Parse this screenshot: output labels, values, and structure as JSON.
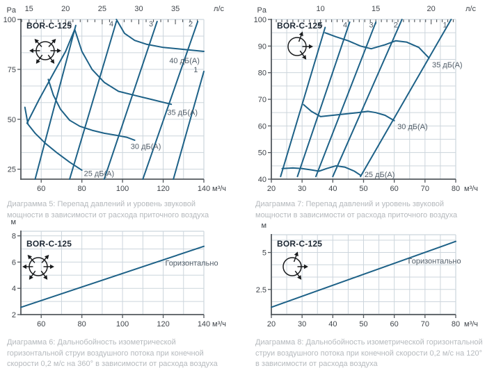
{
  "colors": {
    "curve": "#1d6187",
    "grid": "#ccd5dc",
    "axis": "#53585d",
    "tick_text": "#3f444a",
    "series_label": "#515d68",
    "caption": "#b5b9bd",
    "model": "#1c2733",
    "icon": "#1a1c1e",
    "background": "#ffffff"
  },
  "chart_data": [
    {
      "id": "diagram5",
      "type": "line",
      "title": "BOR-C-125",
      "icon": "diffuser-360-icon",
      "caption": "Диаграмма 5: Перепад давлений и уровень звуковой\nмощности в зависимости от расхода приточного воздуха",
      "x_unit": "м³/ч",
      "y_unit": "Pa",
      "top_unit": "л/с",
      "xlim": [
        50,
        140
      ],
      "ylim": [
        20,
        100
      ],
      "x_ticks": [
        60,
        80,
        100,
        120,
        140
      ],
      "y_ticks": [
        25,
        50,
        75,
        100
      ],
      "top_ticks": [
        15,
        20,
        25,
        30,
        35
      ],
      "top_minor_step": 1,
      "lps_to_m3h": 3.6,
      "grid_step_x": 10,
      "grid_step_y": 8.3333,
      "series": [
        {
          "name": "fan-position-5",
          "label": "5",
          "label_pos": [
            74,
            98
          ],
          "label_anchor": "middle",
          "points": [
            [
              57,
              20
            ],
            [
              77,
              97
            ]
          ]
        },
        {
          "name": "fan-position-4",
          "label": "4",
          "label_pos": [
            94.5,
            98
          ],
          "label_anchor": "middle",
          "points": [
            [
              74,
              20
            ],
            [
              97,
              99
            ]
          ]
        },
        {
          "name": "fan-position-3",
          "label": "3",
          "label_pos": [
            114,
            98
          ],
          "label_anchor": "middle",
          "points": [
            [
              91,
              20
            ],
            [
              117,
              99
            ]
          ]
        },
        {
          "name": "fan-position-2",
          "label": "2",
          "label_pos": [
            133.5,
            98
          ],
          "label_anchor": "middle",
          "points": [
            [
              110,
              20
            ],
            [
              137,
              99
            ]
          ]
        },
        {
          "name": "fan-position-1",
          "label": "1",
          "label_pos": [
            136,
            75
          ],
          "label_anchor": "middle",
          "points": [
            [
              125,
              20
            ],
            [
              140,
              74
            ]
          ]
        },
        {
          "name": "noise-40-dBA",
          "label": "40 дБ(А)",
          "label_pos": [
            123,
            79.5
          ],
          "label_anchor": "start",
          "points": [
            [
              97,
              100
            ],
            [
              101,
              93
            ],
            [
              106,
              89.5
            ],
            [
              112,
              87.5
            ],
            [
              120,
              86
            ],
            [
              130,
              85
            ],
            [
              140,
              84
            ]
          ]
        },
        {
          "name": "noise-35-dBA",
          "label": "35 дБ(А)",
          "label_pos": [
            122,
            53.5
          ],
          "label_anchor": "start",
          "points": [
            [
              53,
              48
            ],
            [
              59,
              60
            ],
            [
              66,
              73
            ],
            [
              72,
              84
            ],
            [
              76.5,
              95
            ],
            [
              80,
              84
            ],
            [
              85,
              75
            ],
            [
              91,
              68.5
            ],
            [
              98,
              64
            ],
            [
              106,
              62
            ],
            [
              114,
              60
            ],
            [
              124,
              57.5
            ]
          ]
        },
        {
          "name": "noise-30-dBA",
          "label": "30 дБ(А)",
          "label_pos": [
            104,
            36.5
          ],
          "label_anchor": "start",
          "points": [
            [
              63.5,
              70
            ],
            [
              66,
              62
            ],
            [
              69.5,
              55
            ],
            [
              74,
              49.5
            ],
            [
              79,
              46.5
            ],
            [
              85,
              44.5
            ],
            [
              91,
              43
            ],
            [
              97,
              42
            ],
            [
              102,
              41
            ],
            [
              106,
              39.5
            ]
          ]
        },
        {
          "name": "noise-25-dBA",
          "label": "25 дБ(А)",
          "label_pos": [
            81,
            23
          ],
          "label_anchor": "start",
          "points": [
            [
              52,
              56
            ],
            [
              53.5,
              47.5
            ],
            [
              57,
              43
            ],
            [
              62,
              38
            ],
            [
              68,
              33
            ],
            [
              74,
              28.5
            ],
            [
              80,
              24.5
            ]
          ]
        }
      ]
    },
    {
      "id": "diagram7",
      "type": "line",
      "title": "BOR-C-125",
      "icon": "diffuser-120-icon",
      "caption": "Диаграмма 7: Перепад давлений и уровень звуковой\nмощности в зависимости от расхода приточного воздуха",
      "x_unit": "м³/ч",
      "y_unit": "Pa",
      "top_unit": "л/с",
      "xlim": [
        20,
        80
      ],
      "ylim": [
        40,
        100
      ],
      "x_ticks": [
        20,
        30,
        40,
        50,
        60,
        70,
        80
      ],
      "y_ticks": [
        40,
        50,
        60,
        70,
        80,
        90,
        100
      ],
      "top_ticks": [
        10,
        15,
        20
      ],
      "top_minor_step": 0.5,
      "lps_to_m3h": 3.6,
      "grid_step_x": 5,
      "grid_step_y": 5,
      "series": [
        {
          "name": "fan-position-5",
          "label": "5",
          "label_pos": [
            36,
            98
          ],
          "label_anchor": "middle",
          "points": [
            [
              23,
              41
            ],
            [
              37.5,
              97
            ]
          ]
        },
        {
          "name": "fan-position-4",
          "label": "4",
          "label_pos": [
            44,
            98
          ],
          "label_anchor": "middle",
          "points": [
            [
              28.5,
              41
            ],
            [
              45.5,
              99
            ]
          ]
        },
        {
          "name": "fan-position-3",
          "label": "3",
          "label_pos": [
            52.5,
            98
          ],
          "label_anchor": "middle",
          "points": [
            [
              34.5,
              41
            ],
            [
              54,
              99
            ]
          ]
        },
        {
          "name": "fan-position-2",
          "label": "2",
          "label_pos": [
            60.5,
            98
          ],
          "label_anchor": "middle",
          "points": [
            [
              40,
              41
            ],
            [
              62.5,
              100
            ]
          ]
        },
        {
          "name": "fan-position-1",
          "label": "1",
          "label_pos": [
            76.5,
            98
          ],
          "label_anchor": "middle",
          "points": [
            [
              49,
              41
            ],
            [
              78.5,
              100
            ]
          ]
        },
        {
          "name": "noise-35-dBA",
          "label": "35 дБ(А)",
          "label_pos": [
            72.3,
            83
          ],
          "label_anchor": "start",
          "points": [
            [
              37.5,
              95
            ],
            [
              41,
              93.5
            ],
            [
              45,
              92
            ],
            [
              49,
              90
            ],
            [
              52.5,
              89
            ],
            [
              57,
              90.5
            ],
            [
              60.5,
              92
            ],
            [
              64,
              91.5
            ],
            [
              68,
              89.5
            ],
            [
              71.3,
              85.5
            ]
          ]
        },
        {
          "name": "noise-30-dBA",
          "label": "30 дБ(А)",
          "label_pos": [
            61,
            59.8
          ],
          "label_anchor": "start",
          "points": [
            [
              30.5,
              68
            ],
            [
              33,
              65.5
            ],
            [
              36,
              63.5
            ],
            [
              40,
              64
            ],
            [
              44,
              64.5
            ],
            [
              48,
              65
            ],
            [
              51.5,
              65.5
            ],
            [
              54,
              65
            ],
            [
              57,
              64
            ],
            [
              60,
              62
            ]
          ]
        },
        {
          "name": "noise-25-dBA",
          "label": "25 дБ(А)",
          "label_pos": [
            50.3,
            41.8
          ],
          "label_anchor": "start",
          "points": [
            [
              23.5,
              44
            ],
            [
              27,
              44.2
            ],
            [
              30,
              44
            ],
            [
              33,
              43.5
            ],
            [
              35.5,
              43
            ],
            [
              38,
              44
            ],
            [
              41,
              45
            ],
            [
              44,
              44.5
            ],
            [
              47,
              43
            ],
            [
              49,
              41.5
            ]
          ]
        }
      ]
    },
    {
      "id": "diagram6",
      "type": "line",
      "title": "BOR-C-125",
      "icon": "diffuser-360-icon",
      "caption": "Диаграмма 6: Дальнобойность изометрической\nгоризонтальной струи воздушного потока при конечной\nскорости 0,2 м/с на 360° в зависимости от расхода воздуха",
      "x_unit": "м³/ч",
      "y_unit": "м",
      "xlim": [
        50,
        140
      ],
      "ylim": [
        2,
        8.35
      ],
      "x_ticks": [
        60,
        80,
        100,
        120,
        140
      ],
      "y_ticks": [
        2,
        4,
        6,
        8
      ],
      "grid_step_x": 10,
      "grid_step_y": 1,
      "series": [
        {
          "name": "throw-horizontal",
          "label": "Горизонтально",
          "label_pos": [
            121,
            5.95
          ],
          "label_anchor": "start",
          "points": [
            [
              50,
              2.55
            ],
            [
              140,
              7.2
            ]
          ]
        }
      ]
    },
    {
      "id": "diagram8",
      "type": "line",
      "title": "BOR-C-125",
      "icon": "diffuser-120-icon",
      "caption": "Диаграмма 8: Дальнобойность изометрической горизонтальной\nструи воздушного потока при конечной скорости 0,2 м/с на 120°\nв зависимости от расхода воздуха",
      "x_unit": "м³/ч",
      "y_unit": "м",
      "xlim": [
        20,
        80
      ],
      "ylim": [
        0.8,
        6.2
      ],
      "x_ticks": [
        20,
        30,
        40,
        50,
        60,
        70,
        80
      ],
      "y_ticks": [
        2.5,
        5
      ],
      "grid_step_x": 5,
      "grid_step_y": 0.8333,
      "series": [
        {
          "name": "throw-horizontal",
          "label": "Горизонтально",
          "label_pos": [
            64.5,
            4.45
          ],
          "label_anchor": "start",
          "points": [
            [
              20,
              1.3
            ],
            [
              80,
              5.75
            ]
          ]
        }
      ]
    }
  ]
}
